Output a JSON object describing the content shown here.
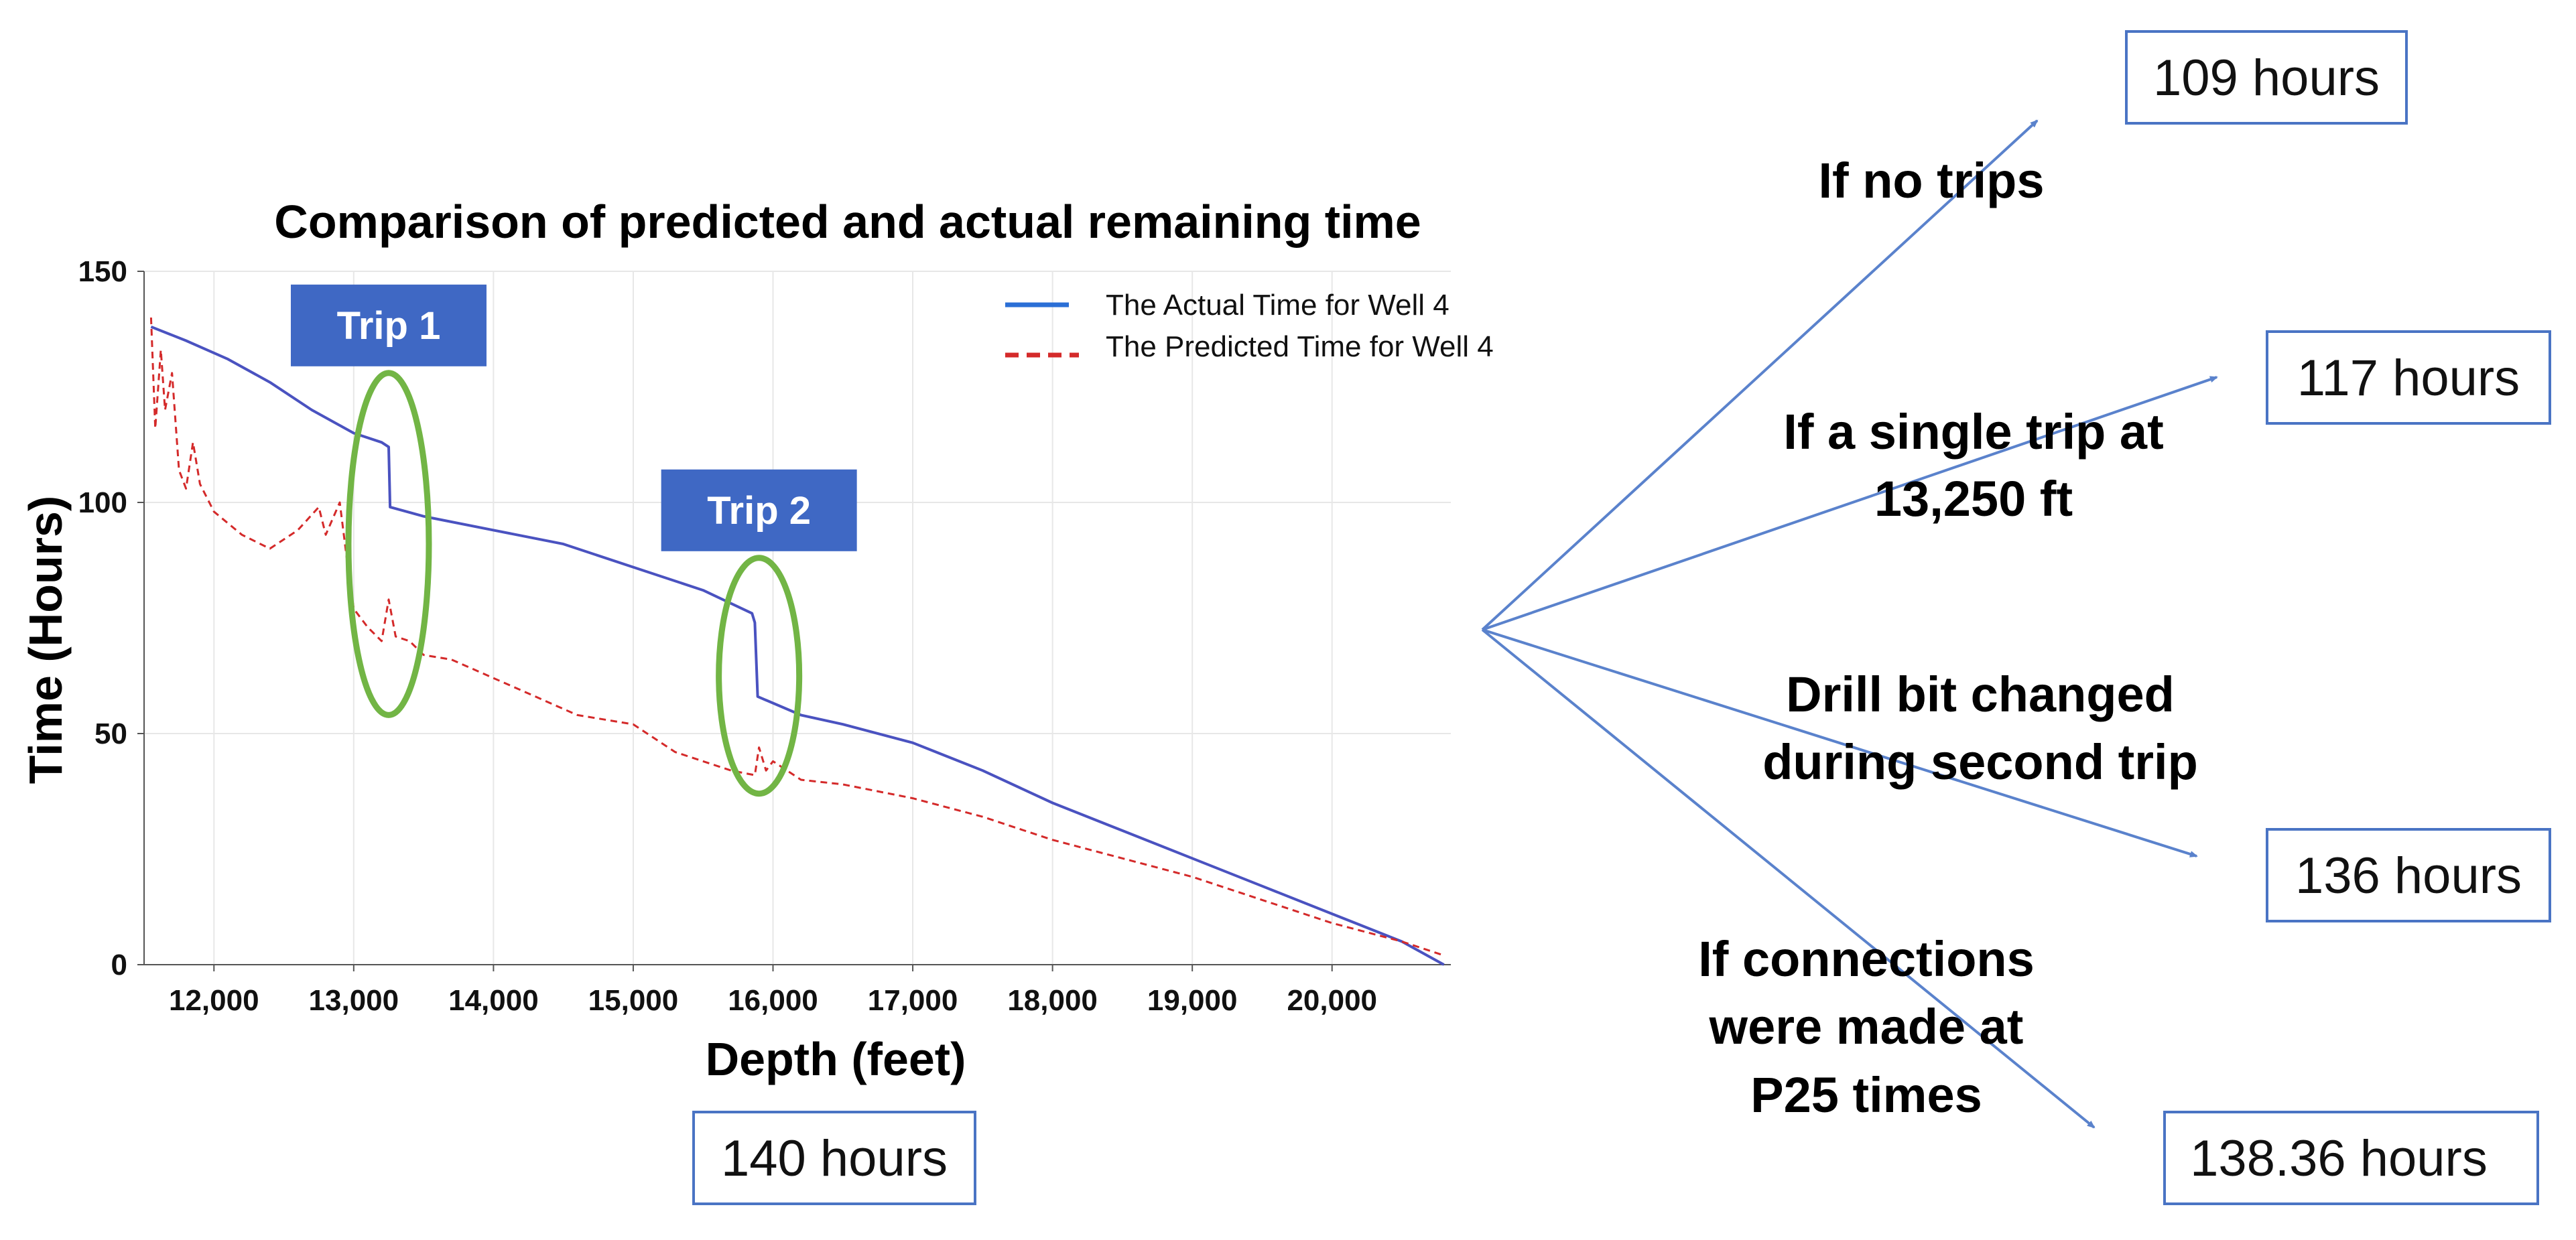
{
  "chart_data": {
    "type": "line",
    "title": "Comparison of predicted and actual remaining time",
    "xlabel": "Depth (feet)",
    "ylabel": "Time (Hours)",
    "xlim": [
      11500,
      20850
    ],
    "ylim": [
      0,
      150
    ],
    "x_ticks": [
      12000,
      13000,
      14000,
      15000,
      16000,
      17000,
      18000,
      19000,
      20000
    ],
    "x_tick_labels": [
      "12,000",
      "13,000",
      "14,000",
      "15,000",
      "16,000",
      "17,000",
      "18,000",
      "19,000",
      "20,000"
    ],
    "y_ticks": [
      0,
      50,
      100,
      150
    ],
    "y_tick_labels": [
      "0",
      "50",
      "100",
      "150"
    ],
    "grid": true,
    "legend_position": "top-right",
    "series": [
      {
        "name": "The Actual Time for Well 4",
        "color": "#4a52c0",
        "style": "solid",
        "points": [
          [
            11550,
            138
          ],
          [
            11800,
            135
          ],
          [
            12100,
            131
          ],
          [
            12400,
            126
          ],
          [
            12700,
            120
          ],
          [
            13000,
            115
          ],
          [
            13200,
            113
          ],
          [
            13250,
            112
          ],
          [
            13260,
            99
          ],
          [
            13500,
            97
          ],
          [
            14000,
            94
          ],
          [
            14500,
            91
          ],
          [
            15000,
            86
          ],
          [
            15500,
            81
          ],
          [
            15850,
            76
          ],
          [
            15870,
            74
          ],
          [
            15890,
            58
          ],
          [
            16200,
            54
          ],
          [
            16500,
            52
          ],
          [
            17000,
            48
          ],
          [
            17500,
            42
          ],
          [
            18000,
            35
          ],
          [
            18500,
            29
          ],
          [
            19000,
            23
          ],
          [
            19500,
            17
          ],
          [
            20000,
            11
          ],
          [
            20500,
            5
          ],
          [
            20800,
            0
          ]
        ]
      },
      {
        "name": "The Predicted Time for Well 4",
        "color": "#d42a2a",
        "style": "dashed",
        "points": [
          [
            11550,
            140
          ],
          [
            11580,
            116
          ],
          [
            11620,
            133
          ],
          [
            11650,
            120
          ],
          [
            11700,
            128
          ],
          [
            11750,
            107
          ],
          [
            11800,
            103
          ],
          [
            11850,
            113
          ],
          [
            11900,
            104
          ],
          [
            12000,
            98
          ],
          [
            12200,
            93
          ],
          [
            12400,
            90
          ],
          [
            12600,
            94
          ],
          [
            12750,
            99
          ],
          [
            12800,
            93
          ],
          [
            12900,
            100
          ],
          [
            12950,
            88
          ],
          [
            13000,
            77
          ],
          [
            13100,
            73
          ],
          [
            13200,
            70
          ],
          [
            13250,
            79
          ],
          [
            13300,
            71
          ],
          [
            13400,
            70
          ],
          [
            13500,
            67
          ],
          [
            13700,
            66
          ],
          [
            14000,
            62
          ],
          [
            14300,
            58
          ],
          [
            14600,
            54
          ],
          [
            15000,
            52
          ],
          [
            15300,
            46
          ],
          [
            15700,
            42
          ],
          [
            15870,
            41
          ],
          [
            15900,
            47
          ],
          [
            15950,
            42
          ],
          [
            16000,
            44
          ],
          [
            16200,
            40
          ],
          [
            16500,
            39
          ],
          [
            17000,
            36
          ],
          [
            17500,
            32
          ],
          [
            18000,
            27
          ],
          [
            18500,
            23
          ],
          [
            19000,
            19
          ],
          [
            19500,
            14
          ],
          [
            20000,
            9
          ],
          [
            20500,
            5
          ],
          [
            20800,
            2
          ]
        ]
      }
    ],
    "annotations": {
      "trip1": {
        "label": "Trip 1",
        "depth": 13250,
        "y_top": 128,
        "y_bottom": 54
      },
      "trip2": {
        "label": "Trip 2",
        "depth": 15900,
        "y_top": 88,
        "y_bottom": 37
      }
    }
  },
  "colors": {
    "trip_box": "#3f68c4",
    "ellipse": "#72b545",
    "arrow": "#5a82cc",
    "box_border": "#4a74c4"
  },
  "total_box": "140 hours",
  "scenarios": [
    {
      "note": [
        "If no trips"
      ],
      "result": "109 hours"
    },
    {
      "note": [
        "If a single trip at",
        "13,250 ft"
      ],
      "result": "117 hours"
    },
    {
      "note": [
        "Drill bit changed",
        "during second trip"
      ],
      "result": "136 hours"
    },
    {
      "note": [
        "If connections",
        "were made at",
        "P25 times"
      ],
      "result": "138.36 hours"
    }
  ]
}
